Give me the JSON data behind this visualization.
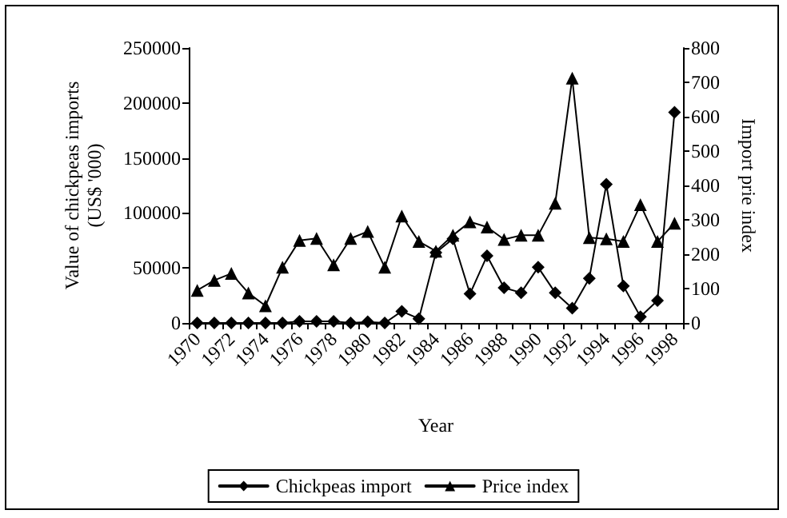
{
  "chart_data": {
    "type": "line",
    "xlabel": "Year",
    "ylabel": "Value of chickpeas imports\n(US$ '000)",
    "y2label": "Import prie index",
    "categories": [
      "1970",
      null,
      "1972",
      null,
      "1974",
      null,
      "1976",
      null,
      "1978",
      null,
      "1980",
      null,
      "1982",
      null,
      "1984",
      null,
      "1986",
      null,
      "1988",
      null,
      "1990",
      null,
      "1992",
      null,
      "1994",
      null,
      "1996",
      null,
      "1998"
    ],
    "series": [
      {
        "name": "Chickpeas import",
        "color": "#000000",
        "marker": "diamond",
        "values": [
          0,
          0,
          0,
          0,
          0,
          0,
          1500,
          1500,
          1500,
          0,
          1000,
          0,
          10600,
          3900,
          64000,
          76500,
          26500,
          61000,
          32000,
          27500,
          50600,
          27500,
          13400,
          40600,
          126000,
          33700,
          5600,
          20300,
          191500
        ]
      },
      {
        "name": "Price index",
        "color": "#000000",
        "marker": "triangle",
        "axis": "y2",
        "values": [
          95,
          124,
          144,
          87,
          50,
          162,
          240,
          246,
          169,
          246,
          266,
          162,
          311,
          237,
          209,
          255,
          294,
          279,
          243,
          255,
          255,
          348,
          712,
          248,
          245,
          237,
          344,
          237,
          290
        ]
      }
    ],
    "ylim": [
      0,
      250000
    ],
    "yticks": [
      0,
      50000,
      100000,
      150000,
      200000,
      250000
    ],
    "y2lim": [
      0,
      800
    ],
    "y2ticks": [
      0,
      100,
      200,
      300,
      400,
      500,
      600,
      700,
      800
    ],
    "grid": false,
    "legend": "bottom",
    "line_style": "solid"
  }
}
